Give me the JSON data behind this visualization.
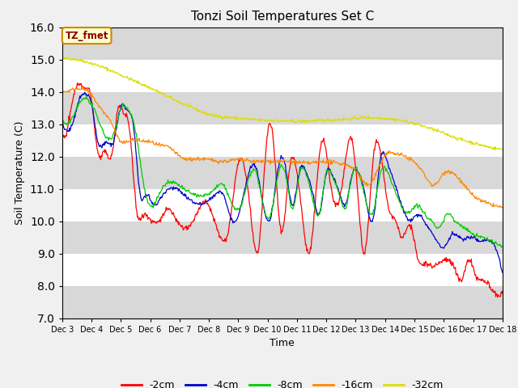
{
  "title": "Tonzi Soil Temperatures Set C",
  "xlabel": "Time",
  "ylabel": "Soil Temperature (C)",
  "ylim": [
    7.0,
    16.0
  ],
  "yticks": [
    7.0,
    8.0,
    9.0,
    10.0,
    11.0,
    12.0,
    13.0,
    14.0,
    15.0,
    16.0
  ],
  "legend_labels": [
    "-2cm",
    "-4cm",
    "-8cm",
    "-16cm",
    "-32cm"
  ],
  "legend_colors": [
    "#ff0000",
    "#0000cc",
    "#00cc00",
    "#ff8800",
    "#dddd00"
  ],
  "annotation_text": "TZ_fmet",
  "annotation_bg": "#ffffcc",
  "annotation_border": "#cc8800",
  "fig_bg": "#f0f0f0",
  "axes_bg": "#e8e8e8",
  "band_color": "#d8d8d8",
  "n_points": 721,
  "x_start": 3.0,
  "x_end": 18.0,
  "xtick_positions": [
    3,
    4,
    5,
    6,
    7,
    8,
    9,
    10,
    11,
    12,
    13,
    14,
    15,
    16,
    17,
    18
  ],
  "xtick_labels": [
    "Dec 3",
    "Dec 4",
    "Dec 5",
    "Dec 6",
    "Dec 7",
    "Dec 8",
    "Dec 9",
    "Dec 10",
    "Dec 11",
    "Dec 12",
    "Dec 13",
    "Dec 14",
    "Dec 15",
    "Dec 16",
    "Dec 17",
    "Dec 18"
  ]
}
